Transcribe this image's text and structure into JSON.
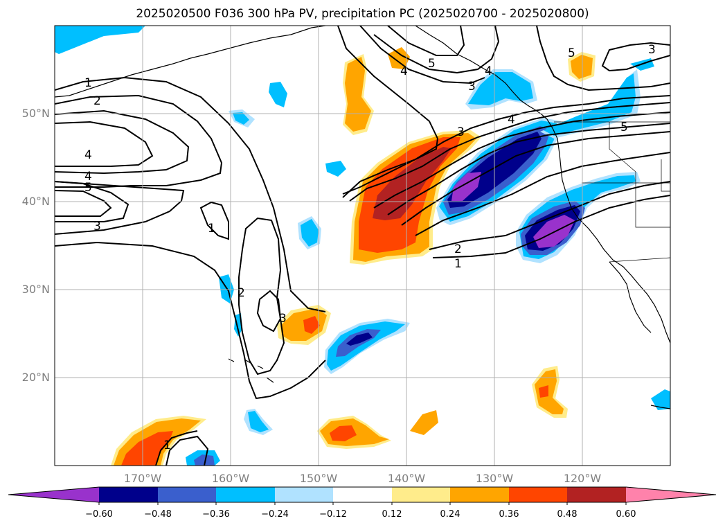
{
  "title": "2025020500 F036 300 hPa PV, precipitation PC (2025020700 - 2025020800)",
  "map": {
    "lon_range": [
      -180,
      -110
    ],
    "lat_range": [
      10,
      60
    ],
    "lat_ticks": [
      {
        "value": 20,
        "label": "20°N"
      },
      {
        "value": 30,
        "label": "30°N"
      },
      {
        "value": 40,
        "label": "40°N"
      },
      {
        "value": 50,
        "label": "50°N"
      }
    ],
    "lon_ticks": [
      {
        "value": -170,
        "label": "170°W"
      },
      {
        "value": -160,
        "label": "160°W"
      },
      {
        "value": -150,
        "label": "150°W"
      },
      {
        "value": -140,
        "label": "140°W"
      },
      {
        "value": -130,
        "label": "130°W"
      },
      {
        "value": -120,
        "label": "120°W"
      }
    ],
    "grid": true
  },
  "colorbar": {
    "levels": [
      -0.6,
      -0.48,
      -0.36,
      -0.24,
      -0.12,
      0.12,
      0.24,
      0.36,
      0.48,
      0.6
    ],
    "labels": [
      "−0.60",
      "−0.48",
      "−0.36",
      "−0.24",
      "−0.12",
      "0.12",
      "0.24",
      "0.36",
      "0.48",
      "0.60"
    ],
    "colors": [
      "#9932cc",
      "#00008b",
      "#3a5fcd",
      "#00bfff",
      "#b0e2ff",
      "#ffffff",
      "#ffec8b",
      "#ffa500",
      "#ff4500",
      "#b22222",
      "#ff82ab"
    ],
    "extend": "both"
  },
  "contour_labels": [
    "1",
    "2",
    "4",
    "4",
    "5",
    "3",
    "1",
    "2",
    "3",
    "3",
    "4",
    "4",
    "5",
    "1",
    "2",
    "5",
    "3",
    "1",
    "3",
    "4",
    "5"
  ]
}
